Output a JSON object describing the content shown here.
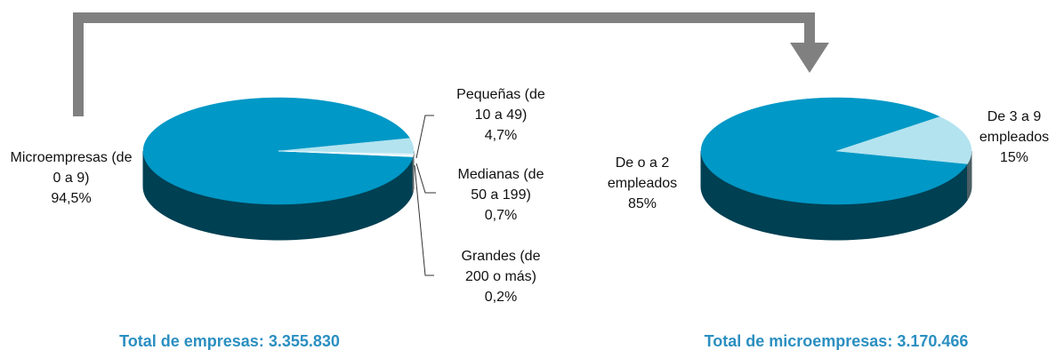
{
  "chart_data": [
    {
      "type": "pie",
      "title": "Total de empresas: 3.355.830",
      "categories": [
        "Microempresas (de 0 a 9)",
        "Pequeñas (de 10 a 49)",
        "Medianas (de 50 a 199)",
        "Grandes (de 200 o más)"
      ],
      "values": [
        94.5,
        4.7,
        0.7,
        0.2
      ],
      "value_labels": [
        "94,5%",
        "4,7%",
        "0,7%",
        "0,2%"
      ],
      "colors": [
        "#0098c6",
        "#b3e3ef",
        "#e6f6fa",
        "#ffffff"
      ]
    },
    {
      "type": "pie",
      "title": "Total de microempresas: 3.170.466",
      "categories": [
        "De o a 2 empleados",
        "De 3 a 9 empleados"
      ],
      "values": [
        85,
        15
      ],
      "value_labels": [
        "85%",
        "15%"
      ],
      "colors": [
        "#0098c6",
        "#b3e3ef"
      ]
    }
  ]
}
